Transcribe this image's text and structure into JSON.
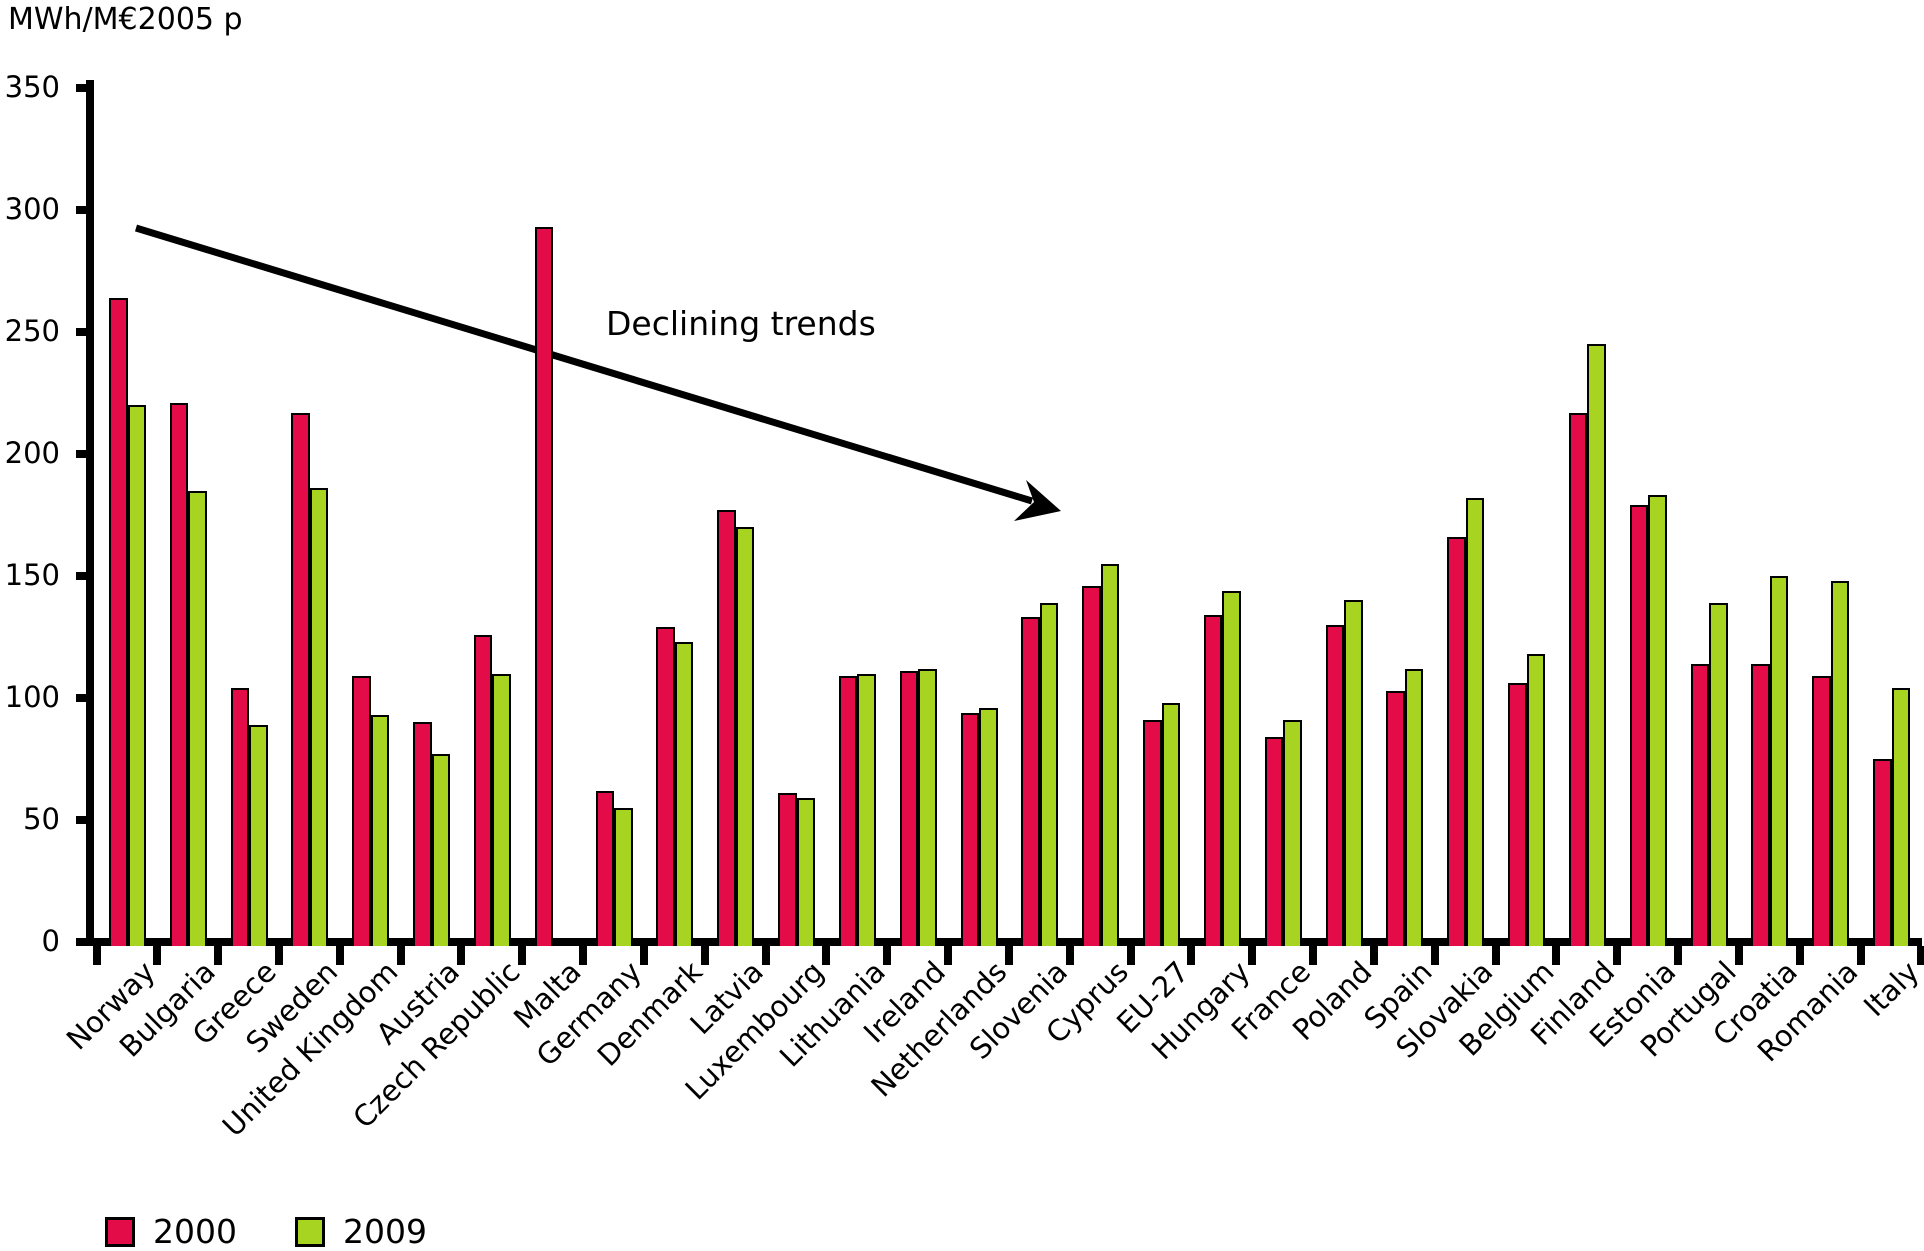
{
  "chart_data": {
    "type": "bar",
    "unit_label": "MWh/M€2005 p",
    "annotation": "Declining trends",
    "grid": false,
    "legend_position": "bottom-left",
    "ylim": [
      0,
      350
    ],
    "yticks": [
      0,
      50,
      100,
      150,
      200,
      250,
      300,
      350
    ],
    "categories": [
      "Norway",
      "Bulgaria",
      "Greece",
      "Sweden",
      "United Kingdom",
      "Austria",
      "Czech Republic",
      "Malta",
      "Germany",
      "Denmark",
      "Latvia",
      "Luxembourg",
      "Lithuania",
      "Ireland",
      "Netherlands",
      "Slovenia",
      "Cyprus",
      "EU-27",
      "Hungary",
      "France",
      "Poland",
      "Spain",
      "Slovakia",
      "Belgium",
      "Finland",
      "Estonia",
      "Portugal",
      "Croatia",
      "Romania",
      "Italy"
    ],
    "series": [
      {
        "name": "2000",
        "color": "#e40c48",
        "values": [
          264,
          221,
          104,
          217,
          109,
          90,
          126,
          293,
          62,
          129,
          177,
          61,
          109,
          111,
          94,
          133,
          146,
          91,
          134,
          84,
          130,
          103,
          166,
          106,
          217,
          179,
          114,
          114,
          109,
          75
        ]
      },
      {
        "name": "2009",
        "color": "#a6d420",
        "values": [
          220,
          185,
          89,
          186,
          93,
          77,
          110,
          null,
          55,
          123,
          170,
          59,
          110,
          112,
          96,
          139,
          155,
          98,
          144,
          91,
          140,
          112,
          182,
          118,
          245,
          183,
          139,
          150,
          148,
          104
        ]
      }
    ]
  }
}
